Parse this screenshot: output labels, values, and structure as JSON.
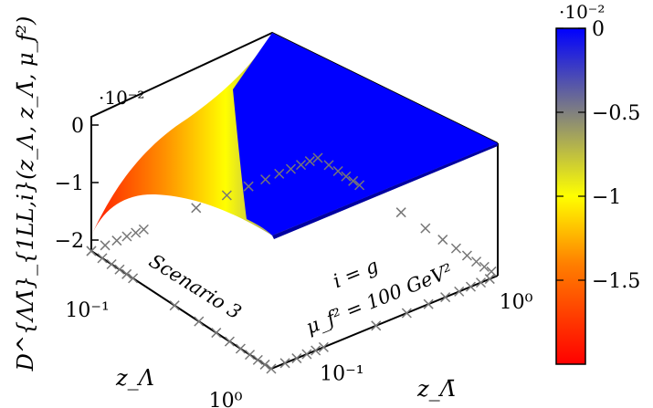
{
  "chart_data": {
    "type": "surface",
    "zlabel": "D^{ΛΛ̄}_{1LL,i}(z_Λ, z_Λ̄, μ_f²)",
    "xlabel": "z_Λ",
    "ylabel": "z_Λ̄",
    "z_scale_label": "·10⁻²",
    "z_ticks": [
      {
        "value": 0,
        "label": "0"
      },
      {
        "value": -1,
        "label": "−1"
      },
      {
        "value": -2,
        "label": "−2"
      }
    ],
    "x_ticks": [
      {
        "value": 0.1,
        "label": "10⁻¹"
      },
      {
        "value": 1,
        "label": "10⁰"
      }
    ],
    "y_ticks": [
      {
        "value": 0.1,
        "label": "10⁻¹"
      },
      {
        "value": 1,
        "label": "10⁰"
      }
    ],
    "x_range": [
      0.05,
      1
    ],
    "y_range": [
      0.05,
      1
    ],
    "z_range": [
      -2,
      0
    ],
    "x_scale": "log",
    "y_scale": "log",
    "annotations": {
      "scenario": "Scenario 3",
      "index": "i = g",
      "scale": "μ_f² = 100 GeV²"
    },
    "colorbar": {
      "scale_label": "·10⁻²",
      "range": [
        -2,
        0
      ],
      "ticks": [
        {
          "value": 0,
          "label": "0"
        },
        {
          "value": -0.5,
          "label": "−0.5"
        },
        {
          "value": -1,
          "label": "−1"
        },
        {
          "value": -1.5,
          "label": "−1.5"
        }
      ],
      "colors": [
        "#ff0000",
        "#ff8000",
        "#ffff00",
        "#808080",
        "#0000ff"
      ]
    },
    "surface_samples": [
      {
        "z_lambda": 0.05,
        "z_lambda_bar": 1.0,
        "value": -2.0
      },
      {
        "z_lambda": 0.08,
        "z_lambda_bar": 1.0,
        "value": -1.45
      },
      {
        "z_lambda": 0.13,
        "z_lambda_bar": 1.0,
        "value": -1.0
      },
      {
        "z_lambda": 0.2,
        "z_lambda_bar": 1.0,
        "value": -0.55
      },
      {
        "z_lambda": 0.3,
        "z_lambda_bar": 1.0,
        "value": -0.2
      },
      {
        "z_lambda": 0.5,
        "z_lambda_bar": 1.0,
        "value": -0.03
      },
      {
        "z_lambda": 1.0,
        "z_lambda_bar": 1.0,
        "value": 0.0
      },
      {
        "z_lambda": 0.05,
        "z_lambda_bar": 0.05,
        "value": -1.95
      },
      {
        "z_lambda": 0.13,
        "z_lambda_bar": 0.05,
        "value": -1.0
      },
      {
        "z_lambda": 0.5,
        "z_lambda_bar": 0.05,
        "value": -0.02
      },
      {
        "z_lambda": 1.0,
        "z_lambda_bar": 0.05,
        "value": 0.0
      }
    ]
  }
}
